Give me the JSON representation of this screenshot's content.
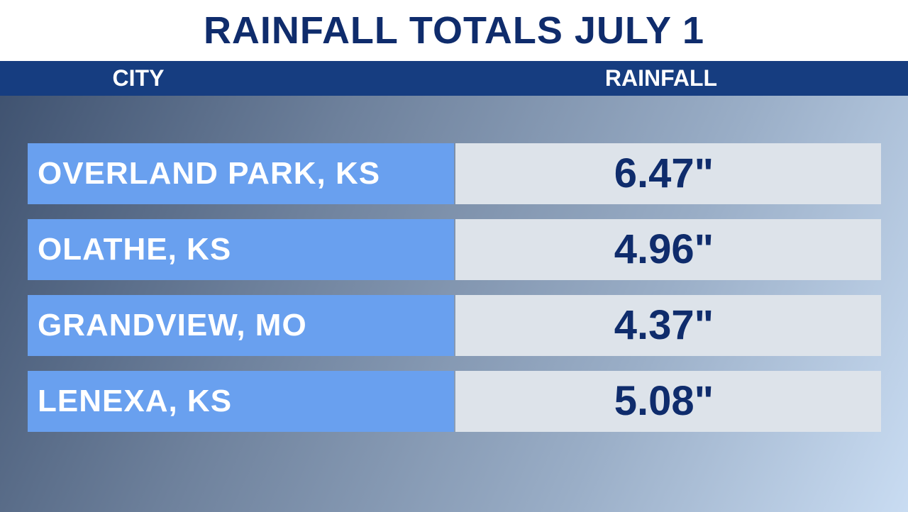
{
  "header": {
    "title": "RAINFALL TOTALS JULY 1"
  },
  "table": {
    "columns": [
      "CITY",
      "RAINFALL"
    ],
    "rows": [
      [
        "OVERLAND PARK, KS",
        "6.47\""
      ],
      [
        "OLATHE, KS",
        "4.96\""
      ],
      [
        "GRANDVIEW, MO",
        "4.37\""
      ],
      [
        "LENEXA, KS",
        "5.08\""
      ]
    ]
  }
}
